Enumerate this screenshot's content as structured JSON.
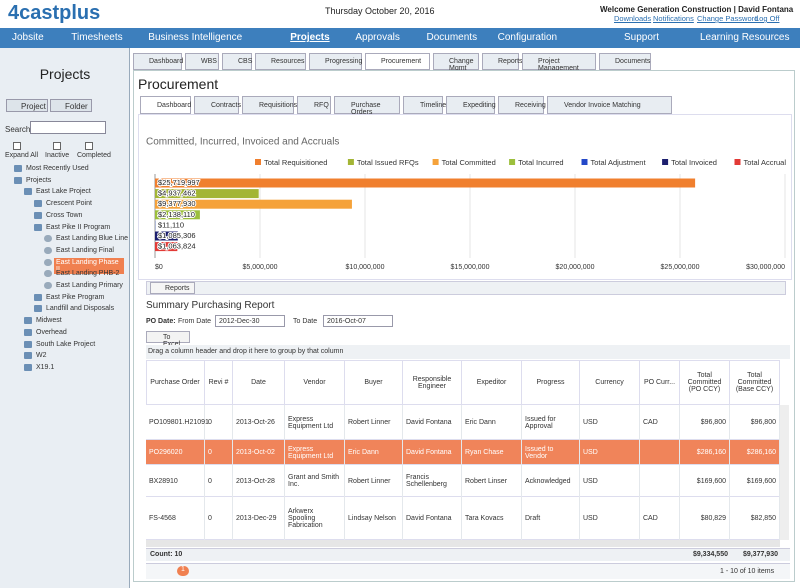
{
  "header": {
    "logo": "4castplus",
    "date": "Thursday October 20, 2016",
    "welcome": "Welcome Generation Construction | David Fontana",
    "links": [
      "Downloads",
      "Notifications",
      "Change Password",
      "Log Off"
    ]
  },
  "nav": {
    "items": [
      "Jobsite",
      "Timesheets",
      "Business Intelligence",
      "Projects",
      "Approvals",
      "Documents",
      "Configuration"
    ],
    "active": 3,
    "right": [
      "Support",
      "Learning Resources"
    ]
  },
  "sidebar": {
    "title": "Projects",
    "buttons": [
      "Project",
      "Folder"
    ],
    "search": "Search",
    "checks": [
      "Expand All",
      "Inactive",
      "Completed"
    ],
    "tree": [
      {
        "label": "Most Recently Used",
        "level": 0
      },
      {
        "label": "Projects",
        "level": 0
      },
      {
        "label": "East Lake Project",
        "level": 1
      },
      {
        "label": "Crescent Point",
        "level": 2
      },
      {
        "label": "Cross Town",
        "level": 2
      },
      {
        "label": "East Pike II Program",
        "level": 2
      },
      {
        "label": "East Landing Blue Line",
        "level": 3
      },
      {
        "label": "East Landing Final",
        "level": 3
      },
      {
        "label": "East Landing Phase II",
        "level": 3
      },
      {
        "label": "East Landing PHB-2",
        "level": 3
      },
      {
        "label": "East Landing Primary",
        "level": 3
      },
      {
        "label": "East Pike Program",
        "level": 2
      },
      {
        "label": "Landfill and Disposals",
        "level": 2
      },
      {
        "label": "Midwest",
        "level": 1
      },
      {
        "label": "Overhead",
        "level": 1
      },
      {
        "label": "South Lake Project",
        "level": 1
      },
      {
        "label": "W2",
        "level": 1
      },
      {
        "label": "X19.1",
        "level": 1
      }
    ],
    "selected": 8
  },
  "tabs": {
    "items": [
      "Dashboard",
      "WBS",
      "CBS",
      "Resources",
      "Progressing",
      "Procurement",
      "Change Mgmt",
      "Reports",
      "Project Management",
      "Documents"
    ],
    "active": 5
  },
  "page_title": "Procurement",
  "subtabs": {
    "items": [
      "Dashboard",
      "Contracts",
      "Requisitions",
      "RFQ",
      "Purchase Orders",
      "Timeline",
      "Expediting",
      "Receiving",
      "Vendor Invoice Matching"
    ],
    "active": 0
  },
  "chart_data": {
    "type": "hbar",
    "title": "Committed, Incurred, Invoiced and Accruals",
    "series": [
      {
        "name": "Total Requisitioned",
        "color": "#f07f2e",
        "values": [
          25719997
        ],
        "value_labels": [
          "$25,719,997"
        ]
      },
      {
        "name": "Total Issued RFQs",
        "color": "#a3b535",
        "values": [
          4937462
        ],
        "value_labels": [
          "$4,937,462"
        ]
      },
      {
        "name": "Total Committed",
        "color": "#f5a23a",
        "values": [
          9377930
        ],
        "value_labels": [
          "$9,377,930"
        ]
      },
      {
        "name": "Total Incurred",
        "color": "#9cbf3c",
        "values": [
          2138110
        ],
        "value_labels": [
          "$2,138,110"
        ]
      },
      {
        "name": "Total Adjustment",
        "color": "#2448c8",
        "values": [
          11110
        ],
        "value_labels": [
          "$11,110"
        ]
      },
      {
        "name": "Total Invoiced",
        "color": "#1c1f6e",
        "values": [
          1085306
        ],
        "value_labels": [
          "$1,085,306"
        ]
      },
      {
        "name": "Total Accrual",
        "color": "#e23a36",
        "values": [
          1063824
        ],
        "value_labels": [
          "$1,063,824"
        ]
      }
    ],
    "xlim": [
      0,
      30000000
    ],
    "xticks": [
      {
        "value": 0,
        "label": "$0"
      },
      {
        "value": 5000000,
        "label": "$5,000,000"
      },
      {
        "value": 10000000,
        "label": "$10,000,000"
      },
      {
        "value": 15000000,
        "label": "$15,000,000"
      },
      {
        "value": 20000000,
        "label": "$20,000,000"
      },
      {
        "value": 25000000,
        "label": "$25,000,000"
      },
      {
        "value": 30000000,
        "label": "$30,000,000"
      }
    ],
    "grid": true,
    "legend": "top"
  },
  "reports_button": "Reports",
  "report": {
    "title": "Summary Purchasing Report",
    "po_date": "PO Date:",
    "from_label": "From Date",
    "from": "2012-Dec-30",
    "to_label": "To Date",
    "to": "2016-Oct-07",
    "excel": "To Excel",
    "group_hint": "Drag a column header and drop it here to group by that column"
  },
  "table": {
    "columns": [
      "Purchase Order",
      "Revi #",
      "Date",
      "Vendor",
      "Buyer",
      "Responsible Engineer",
      "Expeditor",
      "Progress",
      "Currency",
      "PO Curr...",
      "Total Committed (PO CCY)",
      "Total Committed (Base CCY)"
    ],
    "rows": [
      [
        "PO109801.H21091",
        "0",
        "2013-Oct-26",
        "Express Equipment Ltd",
        "Robert Linner",
        "David Fontana",
        "Eric Dann",
        "Issued for Approval",
        "USD",
        "CAD",
        "$96,800",
        "$96,800"
      ],
      [
        "PO296020",
        "0",
        "2013-Oct-02",
        "Express Equipment Ltd",
        "Eric Dann",
        "David Fontana",
        "Ryan Chase",
        "Issued to Vendor",
        "USD",
        null,
        "$286,160",
        "$286,160"
      ],
      [
        "BX28910",
        "0",
        "2013-Oct-28",
        "Grant and Smith Inc.",
        "Robert Linner",
        "Francis Schellenberg",
        "Robert Linser",
        "Acknowledged",
        "USD",
        null,
        "$169,600",
        "$169,600"
      ],
      [
        "FS-4568",
        "0",
        "2013-Dec-29",
        "Arkwerx Spooling Fabrication",
        "Lindsay Nelson",
        "David Fontana",
        "Tara Kovacs",
        "Draft",
        "USD",
        "CAD",
        "$80,829",
        "$82,850"
      ]
    ],
    "selected": 1,
    "count": "Count: 10",
    "totals": [
      "$9,334,550",
      "$9,377,930"
    ]
  },
  "pager": {
    "page": "1",
    "info": "1 - 10 of 10 items"
  }
}
